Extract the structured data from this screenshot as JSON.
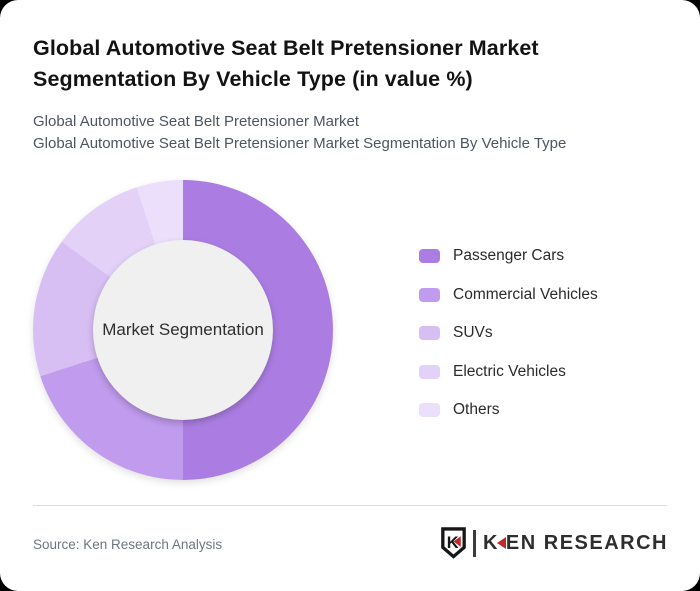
{
  "card": {
    "title_line1": "Global Automotive Seat Belt Pretensioner Market",
    "title_line2": "Segmentation By Vehicle Type (in value %)",
    "subtitle_line1": "Global Automotive Seat Belt Pretensioner Market",
    "subtitle_line2": "Global Automotive Seat Belt Pretensioner Market Segmentation By Vehicle Type"
  },
  "chart_data": {
    "type": "pie",
    "subtype": "donut",
    "title": "Global Automotive Seat Belt Pretensioner Market Segmentation By Vehicle Type (in value %)",
    "center_label": "Market Segmentation",
    "labels": [
      "Passenger Cars",
      "Commercial Vehicles",
      "SUVs",
      "Electric Vehicles",
      "Others"
    ],
    "values": [
      50,
      20,
      15,
      10,
      5
    ],
    "unit": "value %",
    "colors": [
      "#ab7de2",
      "#c09bee",
      "#d7bef3",
      "#e3d1f8",
      "#ecdffb"
    ],
    "start_angle_deg": 0,
    "direction": "clockwise",
    "inner_radius_ratio": 0.6,
    "legend_position": "right",
    "hole_color": "#f0f0f0"
  },
  "footer": {
    "source": "Source: Ken Research Analysis",
    "logo": {
      "shield_letter": "K",
      "brand_first_letter": "K",
      "brand_rest": "EN RESEARCH",
      "accent_color": "#bf2a2a",
      "text_color": "#2e2e2e"
    }
  }
}
